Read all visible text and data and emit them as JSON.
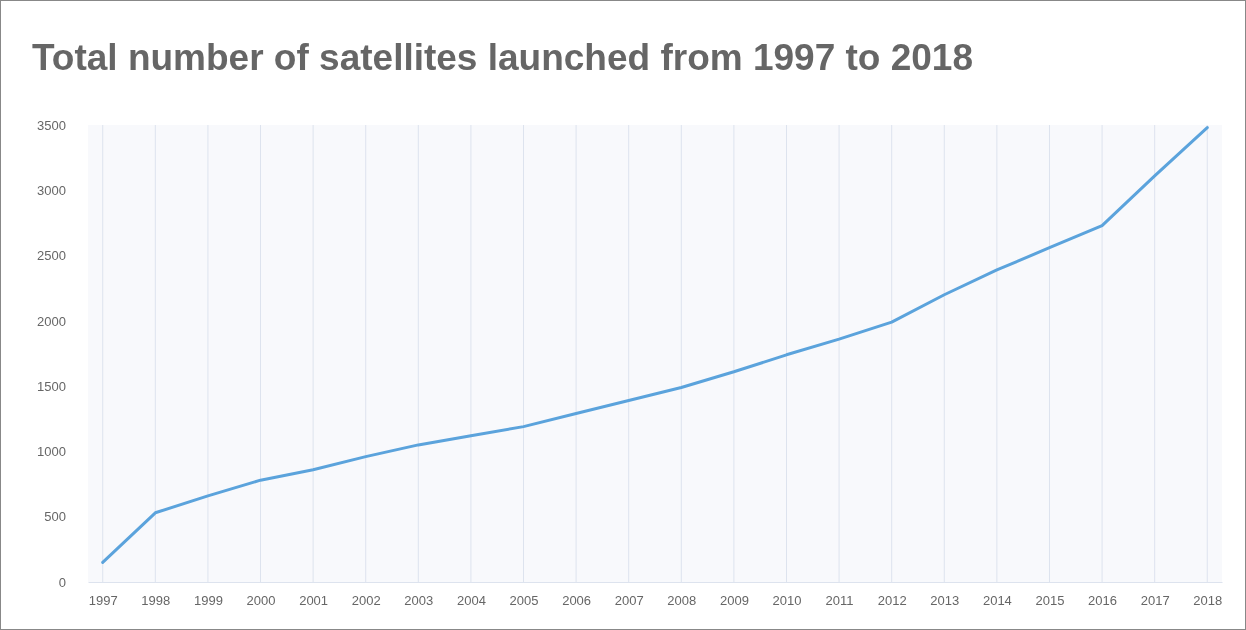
{
  "chart_data": {
    "type": "line",
    "title": "Total number of satellites launched from 1997 to 2018",
    "categories": [
      "1997",
      "1998",
      "1999",
      "2000",
      "2001",
      "2002",
      "2003",
      "2004",
      "2005",
      "2006",
      "2007",
      "2008",
      "2009",
      "2010",
      "2011",
      "2012",
      "2013",
      "2014",
      "2015",
      "2016",
      "2017",
      "2018"
    ],
    "series": [
      {
        "color": "#5ba3dc",
        "values": [
          150,
          530,
          660,
          780,
          860,
          960,
          1050,
          1120,
          1190,
          1290,
          1390,
          1490,
          1610,
          1740,
          1860,
          1990,
          2200,
          2390,
          2560,
          2730,
          3110,
          3480
        ]
      }
    ],
    "ylim": [
      0,
      3500
    ],
    "yticks": [
      0,
      500,
      1000,
      1500,
      2000,
      2500,
      3000,
      3500
    ],
    "grid": "x",
    "marker": "none",
    "line_style": "solid"
  }
}
